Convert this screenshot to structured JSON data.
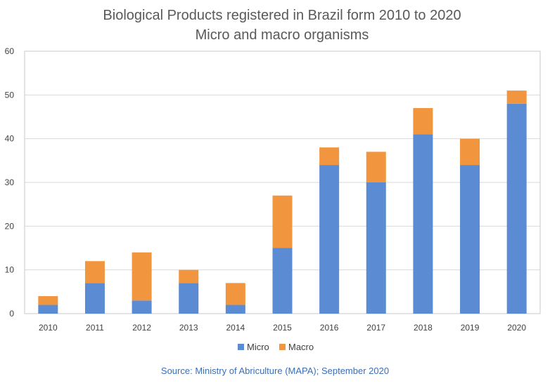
{
  "chart_data": {
    "type": "bar",
    "stacked": true,
    "title": "Biological Products registered in Brazil form 2010 to 2020",
    "subtitle": "Micro and macro organisms",
    "categories": [
      "2010",
      "2011",
      "2012",
      "2013",
      "2014",
      "2015",
      "2016",
      "2017",
      "2018",
      "2019",
      "2020"
    ],
    "series": [
      {
        "name": "Micro",
        "color": "#5b8bd3",
        "values": [
          2,
          7,
          3,
          7,
          2,
          15,
          34,
          30,
          41,
          34,
          48
        ]
      },
      {
        "name": "Macro",
        "color": "#f2953f",
        "values": [
          2,
          5,
          11,
          3,
          5,
          12,
          4,
          7,
          6,
          6,
          3
        ]
      }
    ],
    "ylim": [
      0,
      60
    ],
    "yticks": [
      "0",
      "10",
      "20",
      "30",
      "40",
      "50",
      "60"
    ],
    "grid": true,
    "legend": "bottom",
    "source": "Source: Ministry of Abriculture (MAPA); September  2020"
  }
}
